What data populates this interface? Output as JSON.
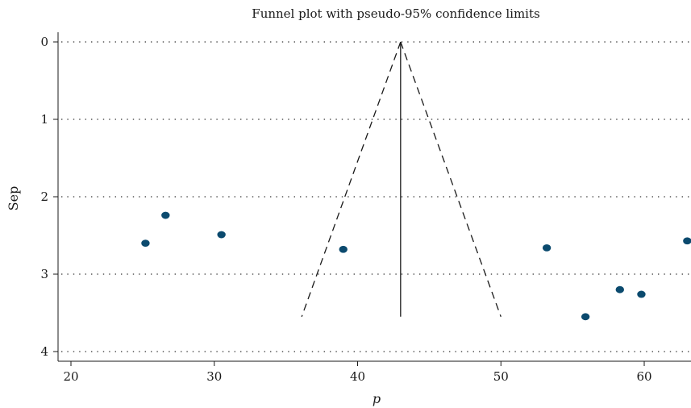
{
  "chart_data": {
    "type": "scatter",
    "title": "Funnel plot with pseudo-95% confidence limits",
    "xlabel": "p",
    "ylabel": "Sep",
    "xlim": [
      19.2,
      63.2
    ],
    "ylim": [
      4.15,
      0
    ],
    "y_reversed": true,
    "xticks": [
      "20",
      "30",
      "40",
      "50",
      "60"
    ],
    "yticks": [
      "0",
      "1",
      "2",
      "3",
      "4"
    ],
    "grid": "horizontal dotted",
    "colors": {
      "points": "#0b4a6e",
      "lines": "#1a1a1a",
      "grid": "#555555"
    },
    "points": [
      {
        "x": 25.2,
        "y": 2.6
      },
      {
        "x": 26.6,
        "y": 2.24
      },
      {
        "x": 30.5,
        "y": 2.49
      },
      {
        "x": 39.0,
        "y": 2.68
      },
      {
        "x": 53.2,
        "y": 2.66
      },
      {
        "x": 55.9,
        "y": 3.55
      },
      {
        "x": 58.3,
        "y": 3.2
      },
      {
        "x": 59.8,
        "y": 3.26
      },
      {
        "x": 63.0,
        "y": 2.57
      }
    ],
    "pooled_estimate": 43.0,
    "funnel": {
      "y_max": 3.55,
      "lower_x_at_bottom": 36.1,
      "upper_x_at_bottom": 50.0
    }
  }
}
